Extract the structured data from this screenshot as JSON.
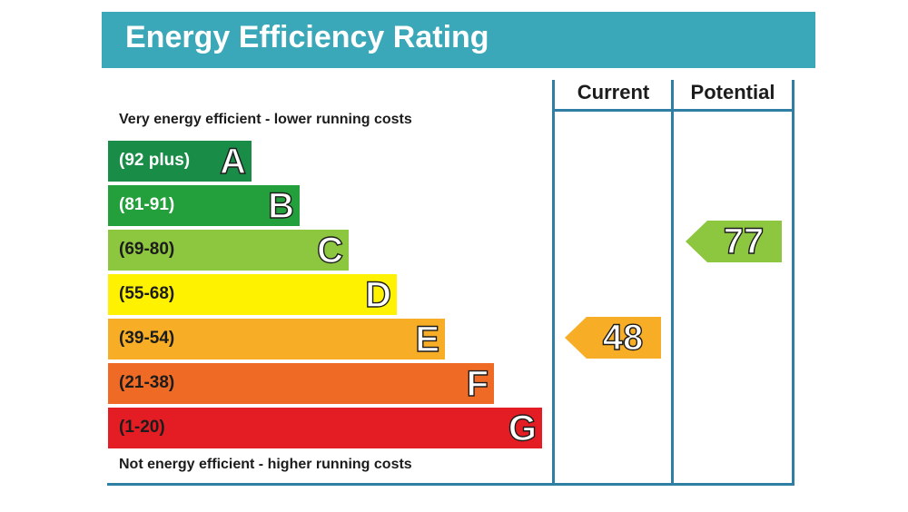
{
  "title": "Energy Efficiency Rating",
  "top_note": "Very energy efficient - lower running costs",
  "bottom_note": "Not energy efficient - higher running costs",
  "columns": {
    "current": "Current",
    "potential": "Potential"
  },
  "chart_data": {
    "type": "bar",
    "title": "Energy Efficiency Rating",
    "bands": [
      {
        "letter": "A",
        "range": "(92 plus)",
        "color": "#198c48"
      },
      {
        "letter": "B",
        "range": "(81-91)",
        "color": "#23a03c"
      },
      {
        "letter": "C",
        "range": "(69-80)",
        "color": "#8dc63f"
      },
      {
        "letter": "D",
        "range": "(55-68)",
        "color": "#fff200"
      },
      {
        "letter": "E",
        "range": "(39-54)",
        "color": "#f7ad25"
      },
      {
        "letter": "F",
        "range": "(21-38)",
        "color": "#ef6b25"
      },
      {
        "letter": "G",
        "range": "(1-20)",
        "color": "#e31d23"
      }
    ],
    "current": {
      "value": "48",
      "band": "E",
      "color": "#f7ad25"
    },
    "potential": {
      "value": "77",
      "band": "C",
      "color": "#8dc63f"
    }
  }
}
